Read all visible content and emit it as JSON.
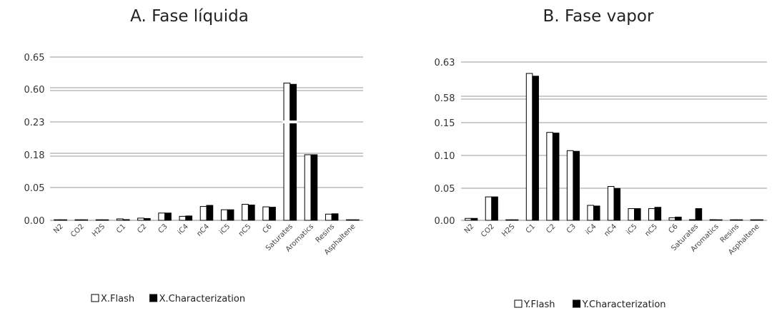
{
  "chart_data": [
    {
      "type": "bar",
      "title": "A. Fase líquida",
      "xlabel": "",
      "ylabel": "",
      "axis_break": true,
      "tick_labels": [
        "0.00",
        "0.05",
        "0.18",
        "0.23",
        "0.60",
        "0.65"
      ],
      "categories": [
        "N2",
        "CO2",
        "H2S",
        "C1",
        "C2",
        "C3",
        "iC4",
        "nC4",
        "iC5",
        "nC5",
        "C6",
        "Saturates",
        "Aromatics",
        "Resins",
        "Asphaltene"
      ],
      "series": [
        {
          "name": "X.Flash",
          "color": "#ffffff",
          "values": [
            0.001,
            0.001,
            0.0,
            0.004,
            0.006,
            0.02,
            0.011,
            0.038,
            0.029,
            0.044,
            0.037,
            0.6095,
            0.208,
            0.017,
            0.001
          ]
        },
        {
          "name": "X.Characterization",
          "color": "#000000",
          "values": [
            0.0,
            0.001,
            0.0,
            0.002,
            0.005,
            0.02,
            0.012,
            0.041,
            0.029,
            0.042,
            0.036,
            0.6075,
            0.212,
            0.018,
            0.0
          ]
        }
      ],
      "legend_position": "bottom"
    },
    {
      "type": "bar",
      "title": "B. Fase vapor",
      "xlabel": "",
      "ylabel": "",
      "axis_break": true,
      "tick_labels": [
        "0.00",
        "0.05",
        "0.10",
        "0.15",
        "0.58",
        "0.63"
      ],
      "categories": [
        "N2",
        "CO2",
        "H2S",
        "C1",
        "C2",
        "C3",
        "iC4",
        "nC4",
        "iC5",
        "nC5",
        "C6",
        "Saturates",
        "Aromatics",
        "Resins",
        "Asphaltene"
      ],
      "series": [
        {
          "name": "Y.Flash",
          "color": "#ffffff",
          "values": [
            0.003,
            0.036,
            0.0,
            0.614,
            0.135,
            0.107,
            0.023,
            0.052,
            0.018,
            0.018,
            0.004,
            0.001,
            0.001,
            0.0,
            0.0
          ]
        },
        {
          "name": "Y.Characterization",
          "color": "#000000",
          "values": [
            0.003,
            0.036,
            0.0,
            0.6102,
            0.134,
            0.106,
            0.022,
            0.049,
            0.018,
            0.02,
            0.005,
            0.018,
            0.0,
            0.0,
            0.0
          ]
        }
      ],
      "legend_position": "bottom"
    }
  ]
}
